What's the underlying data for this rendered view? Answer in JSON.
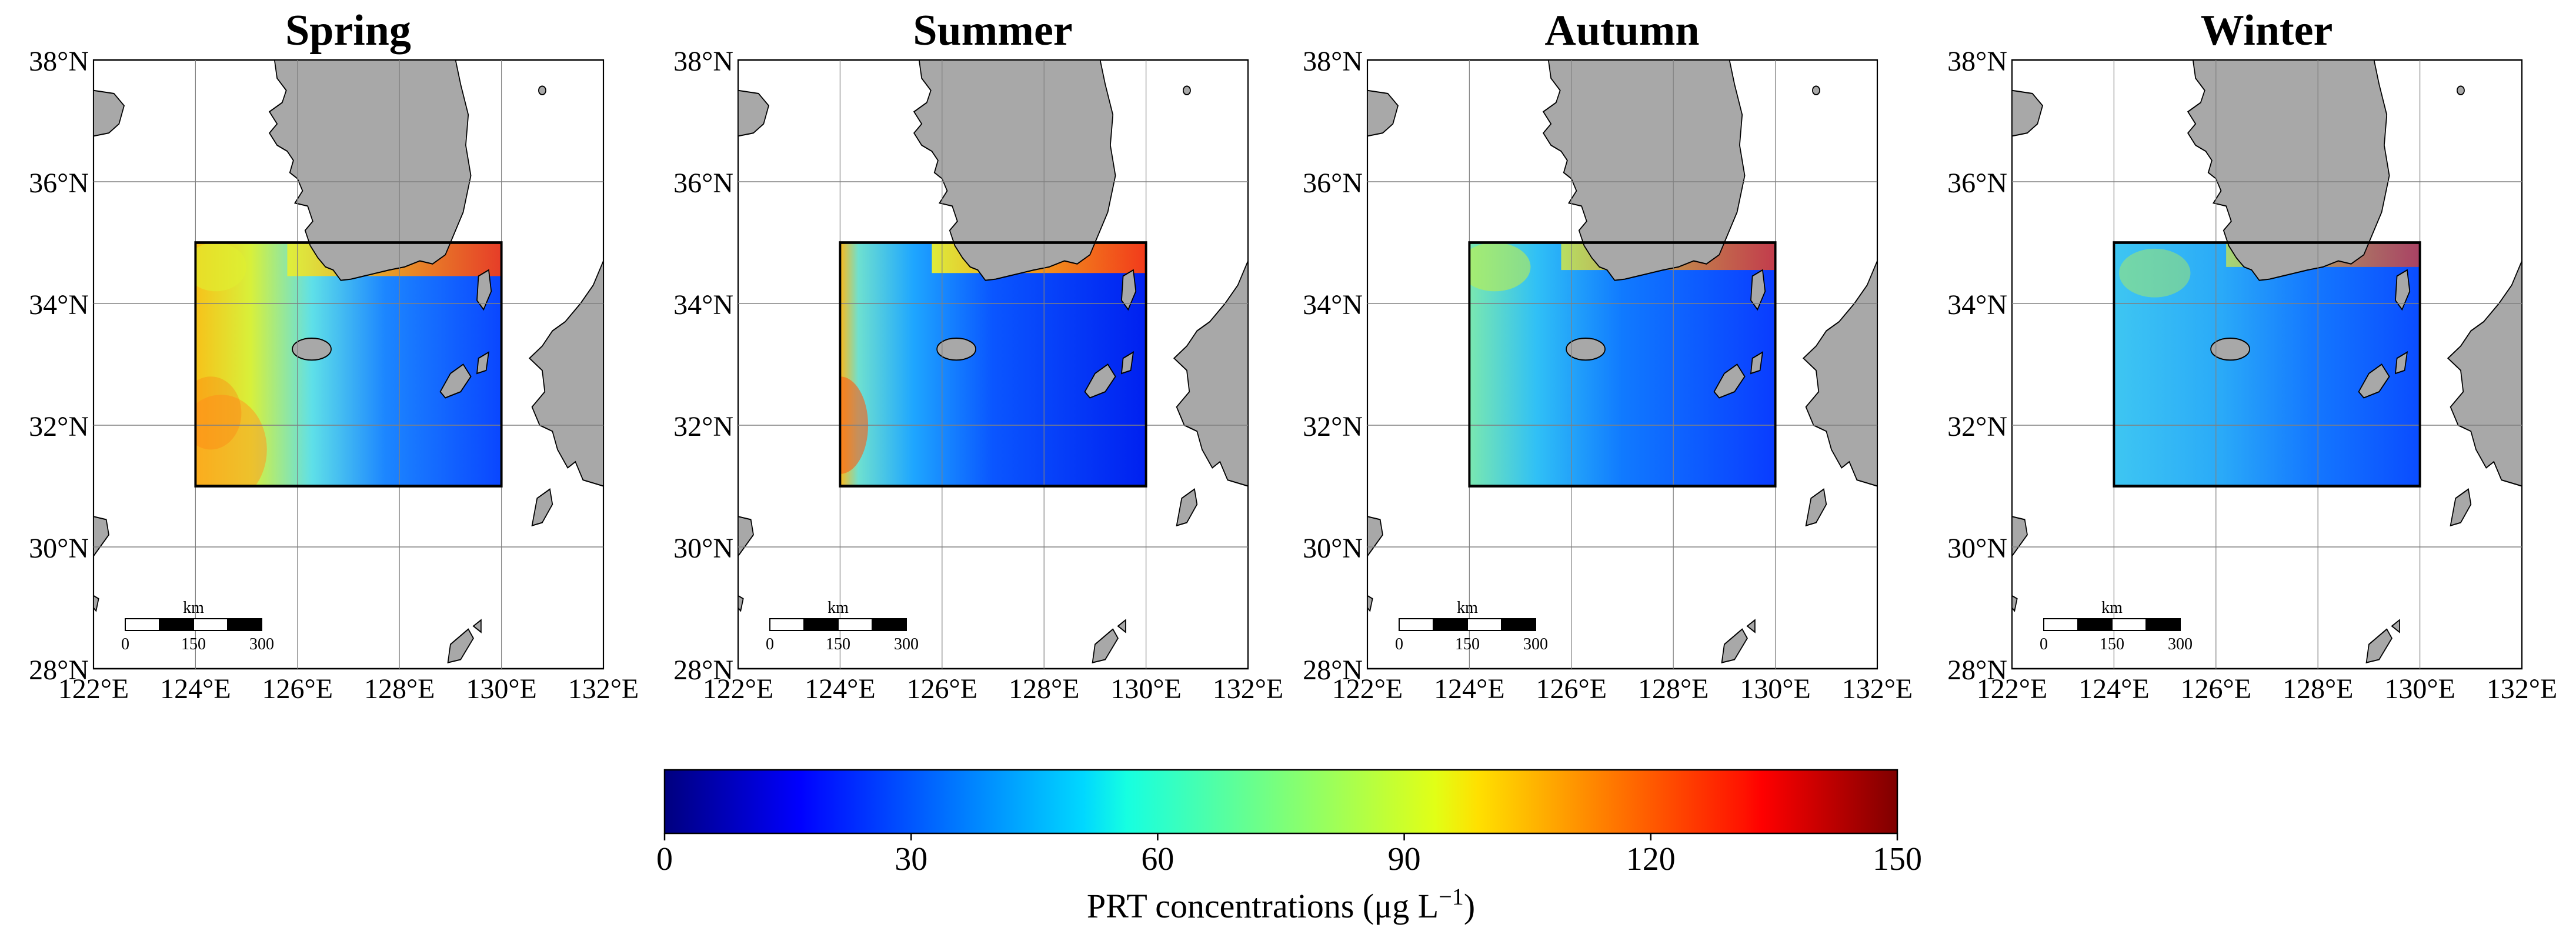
{
  "panels": [
    {
      "title": "Spring"
    },
    {
      "title": "Summer"
    },
    {
      "title": "Autumn"
    },
    {
      "title": "Winter"
    }
  ],
  "map": {
    "lat_labels": [
      "38°N",
      "36°N",
      "34°N",
      "32°N",
      "30°N",
      "28°N"
    ],
    "lon_labels": [
      "122°E",
      "124°E",
      "126°E",
      "128°E",
      "130°E",
      "132°E"
    ],
    "lat_range": [
      28,
      38
    ],
    "lon_range": [
      122,
      132
    ],
    "study_box": {
      "lon": [
        124,
        130
      ],
      "lat": [
        31,
        35
      ]
    },
    "land_color": "#a8a8a8",
    "grid_color": "#808080"
  },
  "scalebar": {
    "unit": "km",
    "ticks": [
      "0",
      "150",
      "300"
    ]
  },
  "colorbar": {
    "label": "PRT concentrations (μg L",
    "label_sup": "−1",
    "label_end": ")",
    "min": 0,
    "max": 150,
    "ticks": [
      "0",
      "30",
      "60",
      "90",
      "120",
      "150"
    ],
    "colormap": "jet"
  }
}
